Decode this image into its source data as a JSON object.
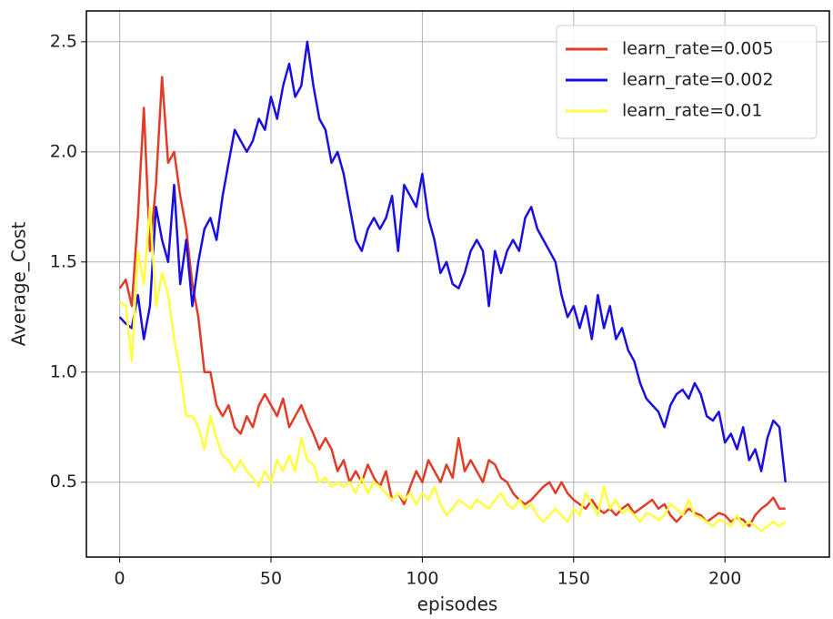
{
  "chart_data": {
    "type": "line",
    "x_label": "episodes",
    "y_label": "Average_Cost",
    "x": [
      0,
      2,
      4,
      6,
      8,
      10,
      12,
      14,
      16,
      18,
      20,
      22,
      24,
      26,
      28,
      30,
      32,
      34,
      36,
      38,
      40,
      42,
      44,
      46,
      48,
      50,
      52,
      54,
      56,
      58,
      60,
      62,
      64,
      66,
      68,
      70,
      72,
      74,
      76,
      78,
      80,
      82,
      84,
      86,
      88,
      90,
      92,
      94,
      96,
      98,
      100,
      102,
      104,
      106,
      108,
      110,
      112,
      114,
      116,
      118,
      120,
      122,
      124,
      126,
      128,
      130,
      132,
      134,
      136,
      138,
      140,
      142,
      144,
      146,
      148,
      150,
      152,
      154,
      156,
      158,
      160,
      162,
      164,
      166,
      168,
      170,
      172,
      174,
      176,
      178,
      180,
      182,
      184,
      186,
      188,
      190,
      192,
      194,
      196,
      198,
      200,
      202,
      204,
      206,
      208,
      210,
      212,
      214,
      216,
      218,
      220
    ],
    "series": [
      {
        "name": "learn_rate=0.005",
        "color": "#e03c28",
        "values": [
          1.38,
          1.42,
          1.3,
          1.7,
          2.2,
          1.55,
          1.85,
          2.34,
          1.95,
          2.0,
          1.8,
          1.65,
          1.4,
          1.25,
          1.0,
          1.0,
          0.85,
          0.8,
          0.85,
          0.75,
          0.72,
          0.8,
          0.75,
          0.85,
          0.9,
          0.85,
          0.8,
          0.88,
          0.75,
          0.8,
          0.85,
          0.78,
          0.72,
          0.65,
          0.7,
          0.65,
          0.55,
          0.6,
          0.5,
          0.55,
          0.5,
          0.58,
          0.52,
          0.48,
          0.55,
          0.42,
          0.45,
          0.4,
          0.48,
          0.55,
          0.5,
          0.6,
          0.55,
          0.5,
          0.58,
          0.52,
          0.7,
          0.55,
          0.6,
          0.55,
          0.5,
          0.6,
          0.58,
          0.52,
          0.5,
          0.45,
          0.42,
          0.4,
          0.42,
          0.45,
          0.48,
          0.5,
          0.45,
          0.5,
          0.45,
          0.42,
          0.4,
          0.38,
          0.42,
          0.38,
          0.36,
          0.38,
          0.35,
          0.38,
          0.4,
          0.36,
          0.38,
          0.4,
          0.42,
          0.38,
          0.4,
          0.35,
          0.32,
          0.35,
          0.38,
          0.36,
          0.35,
          0.32,
          0.34,
          0.36,
          0.35,
          0.32,
          0.34,
          0.33,
          0.3,
          0.35,
          0.38,
          0.4,
          0.43,
          0.38,
          0.38
        ]
      },
      {
        "name": "learn_rate=0.002",
        "color": "#1a0fe0",
        "values": [
          1.25,
          1.22,
          1.2,
          1.35,
          1.15,
          1.3,
          1.75,
          1.6,
          1.5,
          1.85,
          1.4,
          1.6,
          1.3,
          1.5,
          1.65,
          1.7,
          1.6,
          1.8,
          1.95,
          2.1,
          2.05,
          2.0,
          2.05,
          2.15,
          2.1,
          2.25,
          2.15,
          2.3,
          2.4,
          2.25,
          2.3,
          2.5,
          2.3,
          2.15,
          2.1,
          1.95,
          2.0,
          1.9,
          1.75,
          1.6,
          1.55,
          1.65,
          1.7,
          1.65,
          1.7,
          1.8,
          1.55,
          1.85,
          1.8,
          1.75,
          1.9,
          1.7,
          1.6,
          1.45,
          1.5,
          1.4,
          1.38,
          1.45,
          1.55,
          1.6,
          1.55,
          1.3,
          1.55,
          1.45,
          1.55,
          1.6,
          1.55,
          1.7,
          1.75,
          1.65,
          1.6,
          1.55,
          1.5,
          1.35,
          1.25,
          1.3,
          1.2,
          1.3,
          1.15,
          1.35,
          1.2,
          1.3,
          1.15,
          1.2,
          1.1,
          1.05,
          0.95,
          0.88,
          0.85,
          0.82,
          0.75,
          0.85,
          0.9,
          0.92,
          0.88,
          0.95,
          0.9,
          0.8,
          0.78,
          0.82,
          0.68,
          0.72,
          0.65,
          0.75,
          0.6,
          0.65,
          0.55,
          0.7,
          0.78,
          0.75,
          0.5
        ]
      },
      {
        "name": "learn_rate=0.01",
        "color": "#ffff40",
        "values": [
          1.32,
          1.3,
          1.05,
          1.55,
          1.4,
          1.75,
          1.3,
          1.45,
          1.35,
          1.15,
          1.0,
          0.8,
          0.8,
          0.75,
          0.65,
          0.8,
          0.7,
          0.62,
          0.6,
          0.55,
          0.6,
          0.55,
          0.52,
          0.48,
          0.55,
          0.5,
          0.6,
          0.55,
          0.62,
          0.55,
          0.7,
          0.6,
          0.58,
          0.5,
          0.52,
          0.48,
          0.5,
          0.48,
          0.5,
          0.45,
          0.52,
          0.45,
          0.5,
          0.48,
          0.45,
          0.42,
          0.45,
          0.42,
          0.45,
          0.4,
          0.45,
          0.42,
          0.48,
          0.4,
          0.35,
          0.38,
          0.42,
          0.4,
          0.38,
          0.42,
          0.4,
          0.38,
          0.42,
          0.45,
          0.4,
          0.38,
          0.42,
          0.38,
          0.4,
          0.35,
          0.32,
          0.35,
          0.38,
          0.35,
          0.32,
          0.38,
          0.35,
          0.45,
          0.4,
          0.35,
          0.48,
          0.38,
          0.42,
          0.36,
          0.38,
          0.35,
          0.32,
          0.36,
          0.35,
          0.33,
          0.35,
          0.4,
          0.38,
          0.35,
          0.42,
          0.35,
          0.34,
          0.32,
          0.3,
          0.33,
          0.32,
          0.3,
          0.35,
          0.3,
          0.32,
          0.3,
          0.28,
          0.3,
          0.32,
          0.3,
          0.32
        ]
      }
    ],
    "xlim": [
      -11,
      234.5
    ],
    "ylim": [
      0.16,
      2.64
    ],
    "xticks": [
      0,
      50,
      100,
      150,
      200
    ],
    "yticks": [
      0.5,
      {
        "value": 1,
        "label": "1.0"
      },
      1.5,
      {
        "value": 2,
        "label": "2.0"
      },
      2.5
    ],
    "grid": true,
    "legend": "upper right"
  }
}
